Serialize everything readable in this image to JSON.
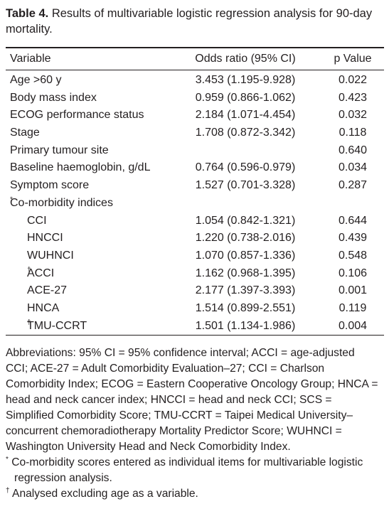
{
  "caption": {
    "label": "Table 4.",
    "text": "Results of multivariable logistic regression analysis for 90-day mortality."
  },
  "table": {
    "columns": [
      "Variable",
      "Odds ratio (95% CI)",
      "p Value"
    ],
    "rows": [
      {
        "variable": "Age >60 y",
        "or": "3.453 (1.195-9.928)",
        "p": "0.022"
      },
      {
        "variable": "Body mass index",
        "or": "0.959 (0.866-1.062)",
        "p": "0.423"
      },
      {
        "variable": "ECOG performance status",
        "or": "2.184 (1.071-4.454)",
        "p": "0.032"
      },
      {
        "variable": "Stage",
        "or": "1.708 (0.872-3.342)",
        "p": "0.118"
      },
      {
        "variable": "Primary tumour site",
        "p": "0.640"
      },
      {
        "variable": "Baseline haemoglobin, g/dL",
        "or": "0.764 (0.596-0.979)",
        "p": "0.034"
      },
      {
        "variable": "Symptom score",
        "or": "1.527 (0.701-3.328)",
        "p": "0.287"
      },
      {
        "variable": "Co-morbidity indices",
        "sup": "*",
        "sub_rows": [
          {
            "variable": "CCI",
            "or": "1.054 (0.842-1.321)",
            "p": "0.644"
          },
          {
            "variable": "HNCCI",
            "or": "1.220 (0.738-2.016)",
            "p": "0.439"
          },
          {
            "variable": "WUHNCI",
            "or": "1.070 (0.857-1.336)",
            "p": "0.548"
          },
          {
            "variable": "ACCI",
            "sup": "†",
            "or": "1.162 (0.968-1.395)",
            "p": "0.106"
          },
          {
            "variable": "ACE-27",
            "or": "2.177 (1.397-3.393)",
            "p": "0.001"
          },
          {
            "variable": "HNCA",
            "or": "1.514 (0.899-2.551)",
            "p": "0.119"
          },
          {
            "variable": "TMU-CCRT",
            "sup": "†",
            "or": "1.501 (1.134-1.986)",
            "p": "0.004"
          }
        ]
      }
    ]
  },
  "footnotes": {
    "abbreviations": "Abbreviations: 95% CI = 95% confidence interval; ACCI = age-adjusted CCI; ACE-27 = Adult Comorbidity Evaluation–27; CCI = Charlson Comorbidity Index; ECOG = Eastern Cooperative Oncology Group; HNCA = head and neck cancer index; HNCCI = head and neck CCI; SCS = Simplified Comorbidity Score; TMU-CCRT = Taipei Medical University–concurrent chemoradiotherapy Mortality Predictor Score; WUHNCI = Washington University Head and Neck Comorbidity Index.",
    "notes": [
      {
        "symbol": "*",
        "text": "Co-morbidity scores entered as individual items for multivariable logistic regression analysis."
      },
      {
        "symbol": "†",
        "text": "Analysed excluding age as a variable."
      }
    ]
  }
}
